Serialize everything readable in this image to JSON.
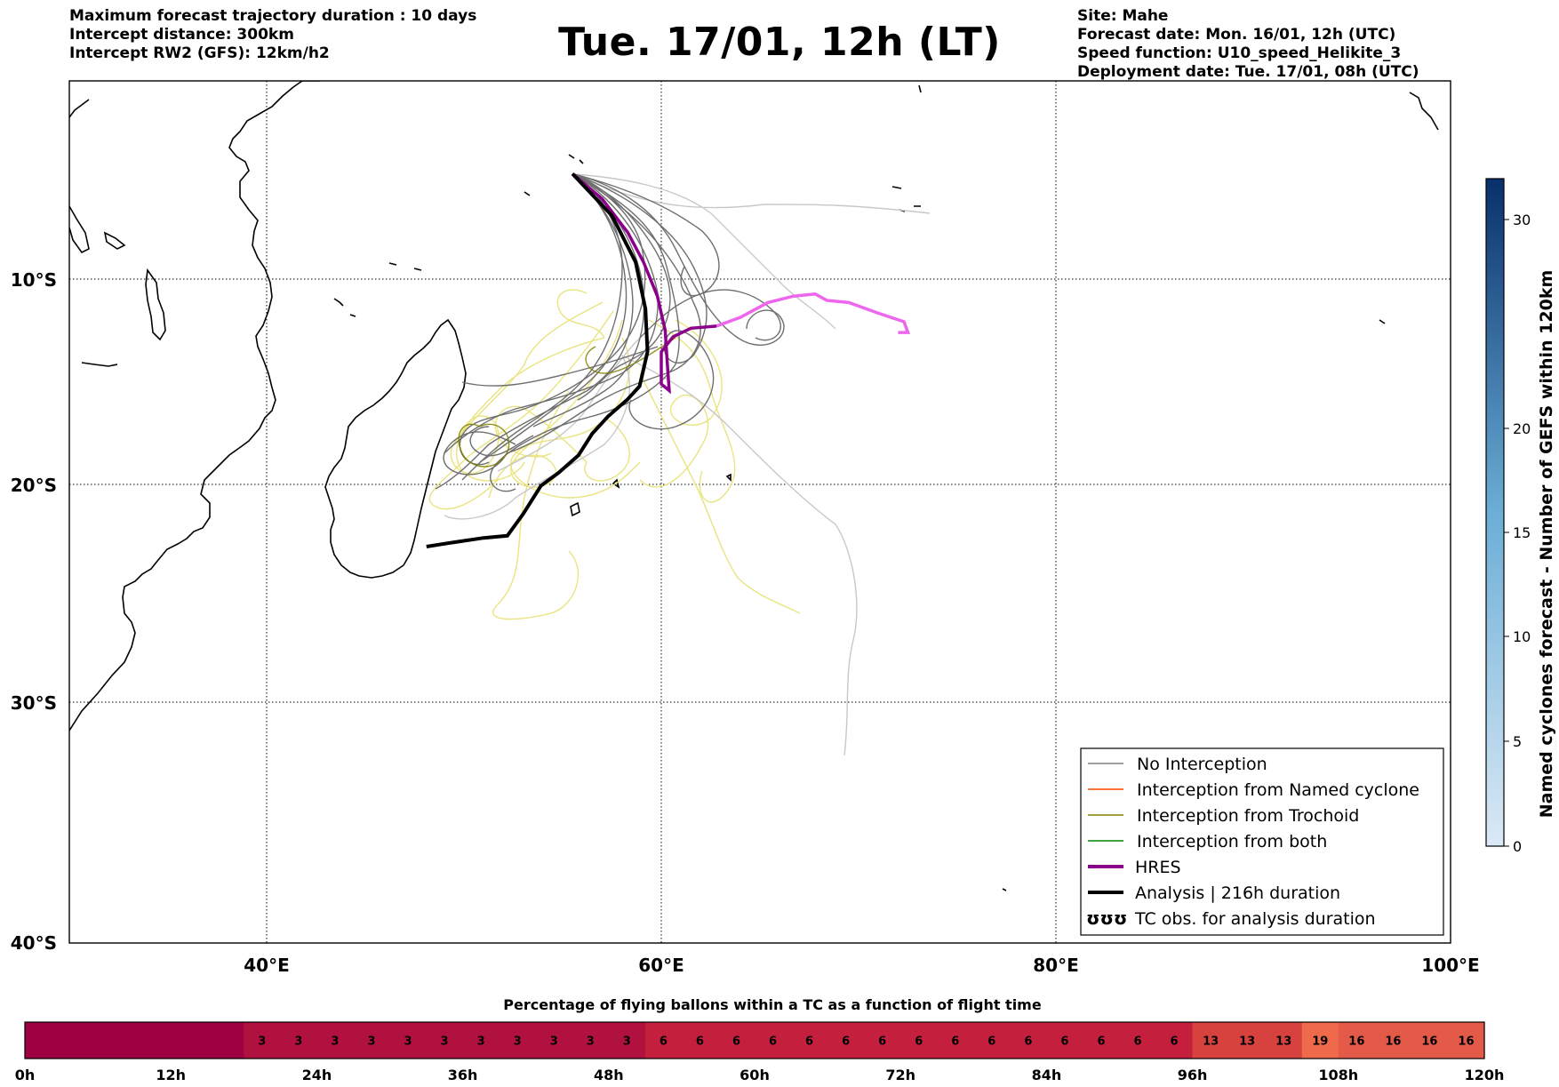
{
  "header": {
    "left_lines": [
      "Maximum forecast trajectory duration : 10 days",
      "Intercept distance: 300km",
      "Intercept RW2 (GFS):  12km/h2"
    ],
    "title": "Tue. 17/01, 12h (LT)",
    "right_lines": [
      "Site: Mahe",
      "Forecast date: Mon. 16/01, 12h (UTC)",
      "Speed function: U10_speed_Helikite_3",
      "Deployment date: Tue. 17/01, 08h (UTC)"
    ]
  },
  "map": {
    "lon_range": [
      30,
      100
    ],
    "lat_range": [
      -40,
      0
    ],
    "lat_labels": [
      "10°S",
      "20°S",
      "30°S",
      "40°S"
    ],
    "lon_labels": [
      "40°E",
      "60°E",
      "80°E",
      "100°E"
    ],
    "grid": "dotted",
    "site_point": [
      55.5,
      -4.6
    ]
  },
  "legend": {
    "placement": "bottom-right",
    "items": [
      {
        "label": "No Interception",
        "color": "#808080"
      },
      {
        "label": "Interception from Named cyclone",
        "color": "#ff4500"
      },
      {
        "label": "Interception from Trochoid",
        "color": "#808000"
      },
      {
        "label": "Interception from both",
        "color": "#008000"
      },
      {
        "label": "HRES",
        "color": "#8b008b"
      },
      {
        "label": "Analysis | 216h duration",
        "color": "#000000"
      },
      {
        "label": "TC obs. for analysis duration",
        "symbol": "ʊʊʊ"
      }
    ]
  },
  "colorbar": {
    "label": "Named cyclones forecast - Number of GEFS within 120km",
    "ticks": [
      "0",
      "5",
      "10",
      "15",
      "20",
      "30"
    ],
    "min_color": "#dbe9f6",
    "max_color": "#08306b"
  },
  "flight_bar": {
    "title": "Percentage of flying ballons within a TC as a function of flight time",
    "ticks": [
      "0h",
      "12h",
      "24h",
      "36h",
      "48h",
      "60h",
      "72h",
      "84h",
      "96h",
      "108h",
      "120h"
    ],
    "cells": [
      "",
      "",
      "",
      "",
      "",
      "",
      "3",
      "3",
      "3",
      "3",
      "3",
      "3",
      "3",
      "3",
      "3",
      "3",
      "3",
      "6",
      "6",
      "6",
      "6",
      "6",
      "6",
      "6",
      "6",
      "6",
      "6",
      "6",
      "6",
      "6",
      "6",
      "6",
      "13",
      "13",
      "13",
      "19",
      "16",
      "16",
      "16",
      "16"
    ],
    "colors": {
      "0": "#9e0142",
      "3": "#b0113f",
      "6": "#c4203e",
      "13": "#d8423e",
      "16": "#e45a48",
      "19": "#ee6a4a"
    }
  },
  "trajectories": {
    "analysis": [
      [
        55.5,
        -4.6
      ],
      [
        57.5,
        -6.6
      ],
      [
        58.7,
        -8.8
      ],
      [
        59.2,
        -11.0
      ],
      [
        59.3,
        -13.0
      ],
      [
        58.9,
        -14.6
      ],
      [
        58.3,
        -15.2
      ],
      [
        57.3,
        -16.0
      ],
      [
        56.5,
        -16.8
      ],
      [
        55.8,
        -17.8
      ],
      [
        54.8,
        -18.6
      ],
      [
        53.9,
        -19.2
      ],
      [
        53.0,
        -20.5
      ],
      [
        52.2,
        -21.5
      ],
      [
        51.0,
        -21.6
      ],
      [
        49.5,
        -21.8
      ],
      [
        48.1,
        -22.0
      ]
    ],
    "hres": [
      [
        55.5,
        -4.6
      ],
      [
        57.0,
        -5.8
      ],
      [
        58.3,
        -7.4
      ],
      [
        59.1,
        -8.8
      ],
      [
        59.8,
        -10.4
      ],
      [
        60.2,
        -12.0
      ],
      [
        60.3,
        -13.5
      ],
      [
        60.4,
        -14.8
      ],
      [
        60.0,
        -14.5
      ],
      [
        60.0,
        -13.0
      ],
      [
        60.6,
        -12.3
      ],
      [
        61.5,
        -11.9
      ],
      [
        62.8,
        -11.8
      ]
    ],
    "hres_ext": [
      [
        62.8,
        -11.8
      ],
      [
        64.0,
        -11.4
      ],
      [
        65.4,
        -10.7
      ],
      [
        66.7,
        -10.4
      ],
      [
        67.8,
        -10.3
      ],
      [
        68.4,
        -10.6
      ],
      [
        69.5,
        -10.7
      ],
      [
        71.0,
        -11.2
      ],
      [
        72.3,
        -11.6
      ],
      [
        72.5,
        -12.1
      ],
      [
        72.0,
        -12.1
      ]
    ]
  }
}
